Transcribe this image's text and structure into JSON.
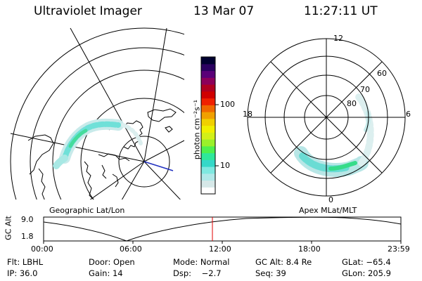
{
  "header": {
    "title": "Ultraviolet Imager",
    "date": "13 Mar 07",
    "time": "11:27:11 UT"
  },
  "colorbar": {
    "unit_label": "photon cm⁻²s⁻¹",
    "tick_100": "100",
    "tick_10": "10",
    "colors": [
      "#ffffff",
      "#d6e8e8",
      "#b0e8e8",
      "#7fe8e0",
      "#35d8c8",
      "#2fe89a",
      "#4ef04e",
      "#9af02a",
      "#d2f018",
      "#f0f000",
      "#f0d000",
      "#f0a000",
      "#f06800",
      "#f02000",
      "#d00000",
      "#b00020",
      "#8c005a",
      "#5a0078",
      "#2a0060",
      "#000030"
    ]
  },
  "left_map": {
    "caption": "Geographic Lat/Lon"
  },
  "right_map": {
    "caption": "Apex MLat/MLT",
    "mlt_labels": {
      "top": "12",
      "bottom": "0",
      "left": "18",
      "right": "6"
    },
    "lat_labels": [
      "60",
      "70",
      "80"
    ]
  },
  "altitude_plot": {
    "ylabel": "GC Alt",
    "yticks": [
      "9.0",
      "1.8"
    ],
    "xticks": [
      "00:00",
      "06:00",
      "12:00",
      "18:00",
      "23:59"
    ],
    "marker_color": "#e00000"
  },
  "info_rows": [
    [
      "Flt: LBHL",
      "Door: Open",
      "Mode: Normal",
      "GC Alt: 8.4 Re",
      "GLat: −65.4"
    ],
    [
      "IP: 36.0",
      "Gain: 14",
      "Dsp:    −2.7",
      "Seq: 39",
      "GLon: 205.9"
    ]
  ]
}
